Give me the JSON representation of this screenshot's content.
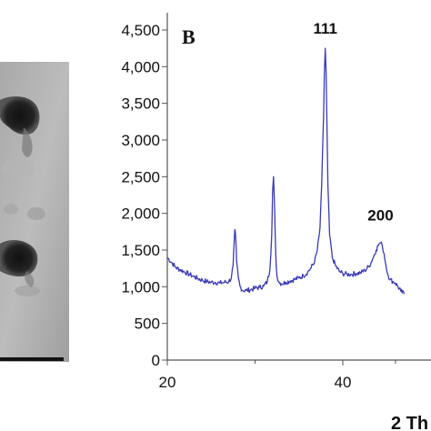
{
  "panel_label": "B",
  "chart_data": {
    "type": "line",
    "panel": "B",
    "xlabel": "2 Th",
    "ylabel": "",
    "xlim": [
      20,
      47
    ],
    "ylim": [
      0,
      4700
    ],
    "xticks": [
      20,
      40
    ],
    "xtick_labels": [
      "20",
      "40"
    ],
    "yticks": [
      0,
      500,
      1000,
      1500,
      2000,
      2500,
      3000,
      3500,
      4000,
      4500
    ],
    "ytick_labels": [
      "0",
      "500",
      "1,000",
      "1,500",
      "2,000",
      "2,500",
      "3,000",
      "3,500",
      "4,000",
      "4,500"
    ],
    "grid": false,
    "line_color": "#3a3ab8",
    "annotations": [
      {
        "text": "111",
        "x": 38.0,
        "y": 4450
      },
      {
        "text": "200",
        "x": 44.3,
        "y": 1900
      }
    ],
    "series": [
      {
        "x": [
          20.0,
          20.5,
          21.0,
          21.5,
          22.0,
          22.5,
          23.0,
          23.5,
          24.0,
          24.5,
          25.0,
          25.5,
          26.0,
          26.5,
          27.0,
          27.3,
          27.5,
          27.6,
          27.7,
          27.8,
          27.9,
          28.1,
          28.3,
          28.6,
          29.0,
          29.5,
          30.0,
          30.5,
          31.0,
          31.4,
          31.7,
          31.9,
          32.0,
          32.1,
          32.2,
          32.3,
          32.4,
          32.5,
          32.7,
          33.0,
          33.5,
          34.0,
          34.5,
          35.0,
          35.5,
          36.0,
          36.4,
          36.8,
          37.1,
          37.4,
          37.6,
          37.8,
          37.9,
          38.0,
          38.1,
          38.2,
          38.3,
          38.5,
          38.8,
          39.2,
          39.6,
          40.0,
          40.5,
          41.0,
          41.5,
          42.0,
          42.5,
          43.0,
          43.4,
          43.8,
          44.1,
          44.3,
          44.5,
          44.7,
          44.9,
          45.1,
          45.4,
          45.7,
          46.0,
          46.3,
          46.6,
          47.0
        ],
        "y": [
          1400,
          1330,
          1260,
          1230,
          1200,
          1170,
          1140,
          1110,
          1090,
          1070,
          1060,
          1060,
          1050,
          1060,
          1070,
          1120,
          1300,
          1550,
          1780,
          1650,
          1350,
          1120,
          1000,
          950,
          950,
          960,
          980,
          990,
          1010,
          1070,
          1250,
          1700,
          2300,
          2500,
          2200,
          1700,
          1300,
          1150,
          1070,
          1040,
          1060,
          1080,
          1100,
          1120,
          1150,
          1200,
          1260,
          1350,
          1500,
          1800,
          2400,
          3300,
          3900,
          4250,
          3900,
          3200,
          2400,
          1700,
          1400,
          1280,
          1210,
          1180,
          1170,
          1170,
          1180,
          1190,
          1220,
          1280,
          1380,
          1500,
          1580,
          1600,
          1560,
          1450,
          1300,
          1180,
          1100,
          1070,
          1050,
          1000,
          940,
          900
        ]
      }
    ]
  }
}
